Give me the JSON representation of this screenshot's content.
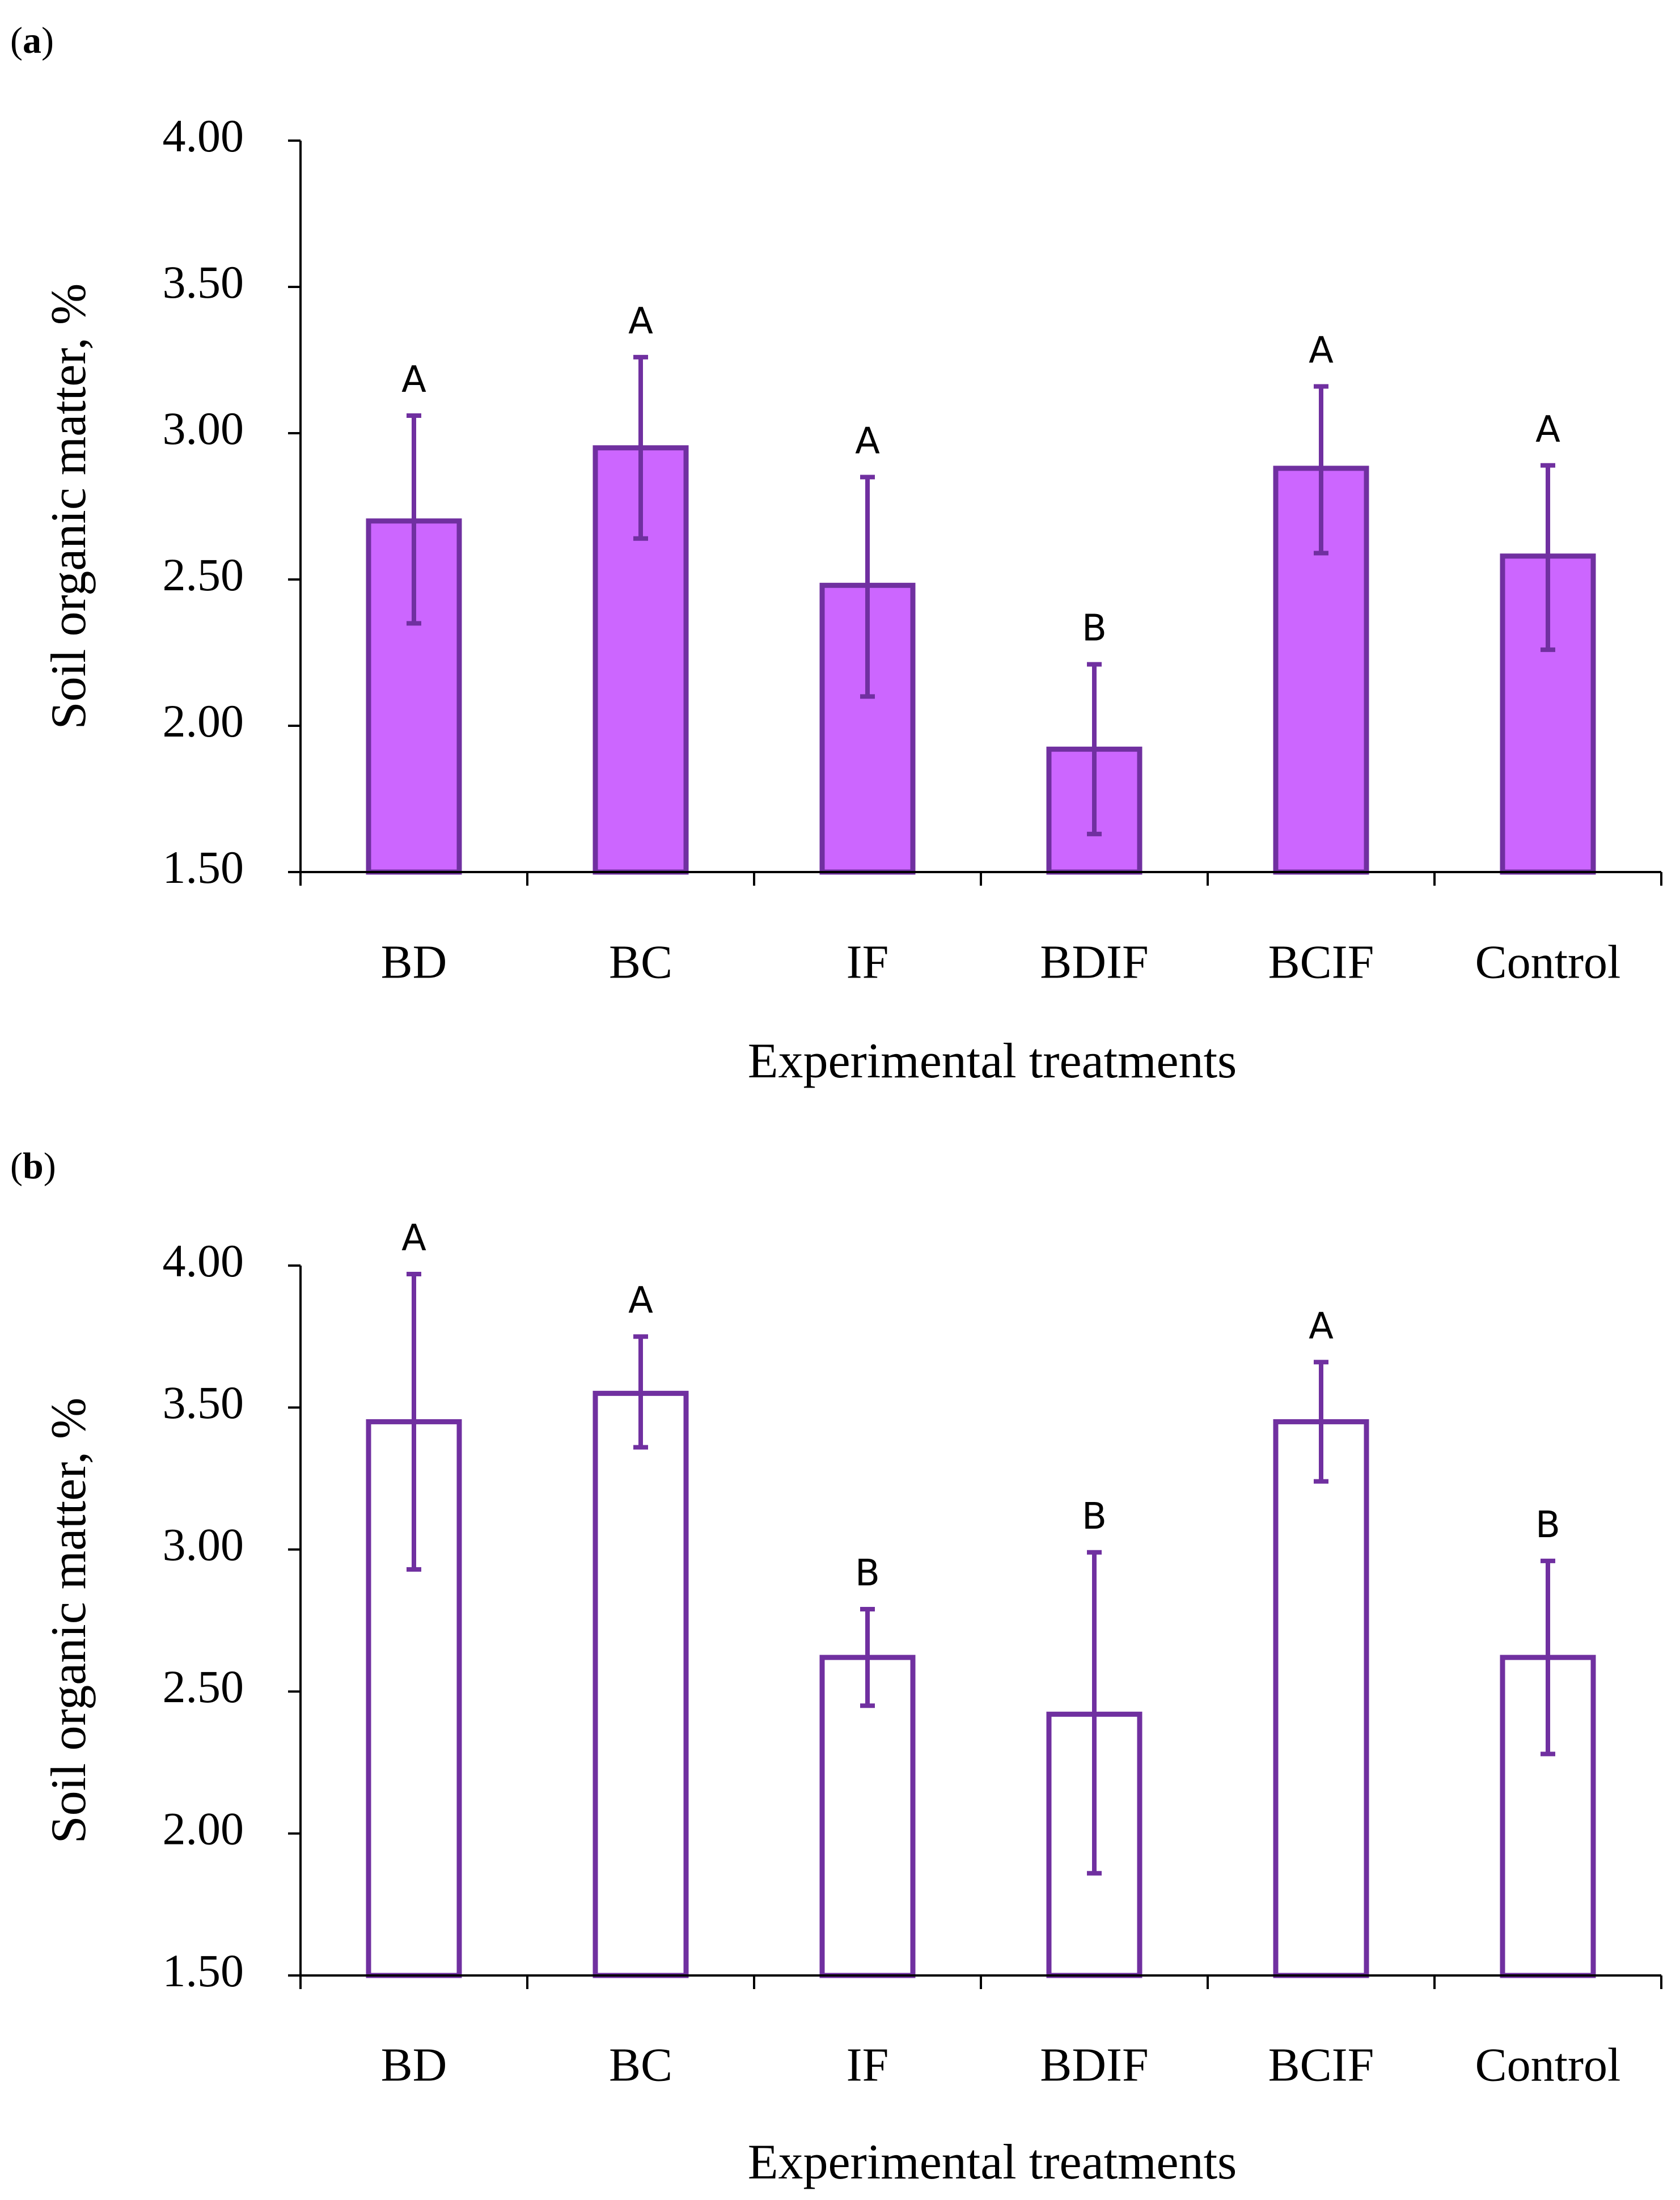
{
  "chart_data": [
    {
      "panel_label": "a",
      "type": "bar",
      "style": "filled",
      "title": "",
      "xlabel": "Experimental treatments",
      "ylabel": "Soil organic matter, %",
      "ylim": [
        1.5,
        4.0
      ],
      "yticks": [
        "1.50",
        "2.00",
        "2.50",
        "3.00",
        "3.50",
        "4.00"
      ],
      "categories": [
        "BD",
        "BC",
        "IF",
        "BDIF",
        "BCIF",
        "Control"
      ],
      "values": [
        2.7,
        2.95,
        2.48,
        1.92,
        2.88,
        2.58
      ],
      "error_low": [
        2.35,
        2.64,
        2.1,
        1.63,
        2.59,
        2.26
      ],
      "error_high": [
        3.06,
        3.26,
        2.85,
        2.21,
        3.16,
        2.89
      ],
      "letters": [
        "A",
        "A",
        "A",
        "B",
        "A",
        "A"
      ],
      "grid": false
    },
    {
      "panel_label": "b",
      "type": "bar",
      "style": "outline",
      "title": "",
      "xlabel": "Experimental treatments",
      "ylabel": "Soil organic matter, %",
      "ylim": [
        1.5,
        4.0
      ],
      "yticks": [
        "1.50",
        "2.00",
        "2.50",
        "3.00",
        "3.50",
        "4.00"
      ],
      "categories": [
        "BD",
        "BC",
        "IF",
        "BDIF",
        "BCIF",
        "Control"
      ],
      "values": [
        3.45,
        3.55,
        2.62,
        2.42,
        3.45,
        2.62
      ],
      "error_low": [
        2.93,
        3.36,
        2.45,
        1.86,
        3.24,
        2.28
      ],
      "error_high": [
        3.97,
        3.75,
        2.79,
        2.99,
        3.66,
        2.96
      ],
      "letters": [
        "A",
        "A",
        "B",
        "B",
        "A",
        "B"
      ],
      "grid": false
    }
  ],
  "colors": {
    "bar_stroke": "#7030A0",
    "bar_fill_a": "#CC66FF",
    "bar_fill_b": "#FFFFFF",
    "axis": "#000000",
    "text": "#000000"
  }
}
